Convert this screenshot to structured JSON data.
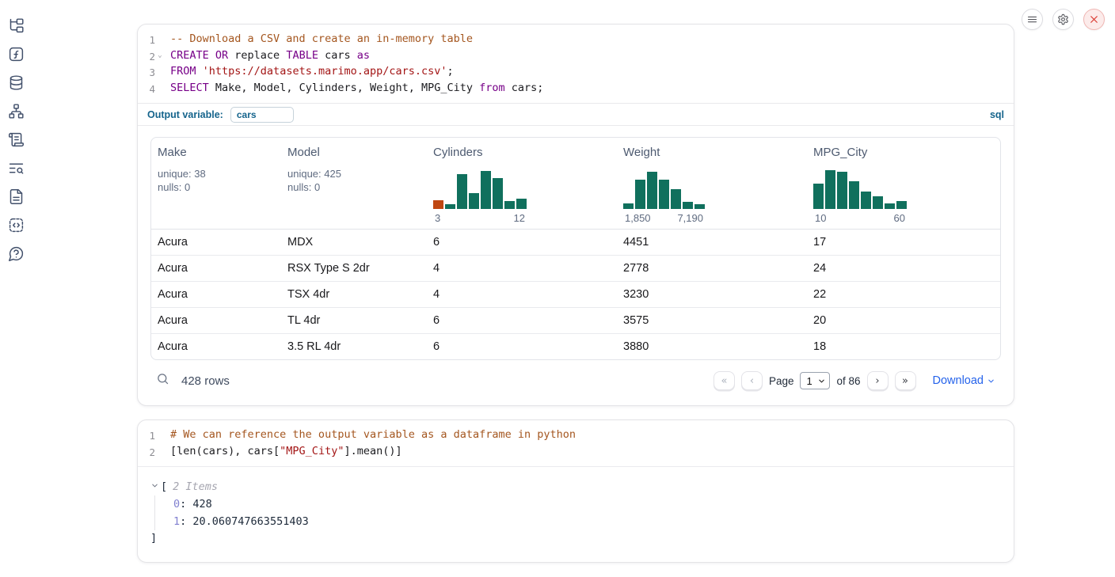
{
  "sidebar": {
    "icons": [
      "file-explorer",
      "functions",
      "datasources",
      "dependency-graph",
      "logs",
      "outline-search",
      "documentation",
      "snippets",
      "help"
    ]
  },
  "topbar": {
    "menu": "menu",
    "settings": "settings",
    "shutdown": "shutdown"
  },
  "colors": {
    "hist_bar": "#10705d",
    "hist_bar_highlight": "#bf4712",
    "accent_blue": "#15648c",
    "link_blue": "#2563eb"
  },
  "cells": [
    {
      "language_badge": "sql",
      "output_variable": {
        "label": "Output variable:",
        "value": "cars"
      },
      "code": [
        {
          "num": "1",
          "fold": false,
          "tokens": [
            {
              "text": "-- Download a CSV and create an in-memory table",
              "type": "comment"
            }
          ]
        },
        {
          "num": "2",
          "fold": true,
          "tokens": [
            {
              "text": "CREATE OR",
              "type": "keyword"
            },
            {
              "text": " replace ",
              "type": "plain"
            },
            {
              "text": "TABLE",
              "type": "keyword"
            },
            {
              "text": " cars ",
              "type": "plain"
            },
            {
              "text": "as",
              "type": "keyword"
            }
          ]
        },
        {
          "num": "3",
          "fold": false,
          "tokens": [
            {
              "text": "FROM",
              "type": "keyword"
            },
            {
              "text": " ",
              "type": "plain"
            },
            {
              "text": "'https://datasets.marimo.app/cars.csv'",
              "type": "string"
            },
            {
              "text": ";",
              "type": "plain"
            }
          ]
        },
        {
          "num": "4",
          "fold": false,
          "tokens": [
            {
              "text": "SELECT",
              "type": "keyword"
            },
            {
              "text": " Make, Model, Cylinders, Weight, MPG_City ",
              "type": "plain"
            },
            {
              "text": "from",
              "type": "keyword"
            },
            {
              "text": " cars;",
              "type": "plain"
            }
          ]
        }
      ],
      "table": {
        "columns": [
          {
            "name": "Make",
            "stats": [
              "unique: 38",
              "nulls: 0"
            ]
          },
          {
            "name": "Model",
            "stats": [
              "unique: 425",
              "nulls: 0"
            ]
          },
          {
            "name": "Cylinders",
            "hist": {
              "min_label": "3",
              "max_label": "12",
              "heights": [
                22,
                12,
                85,
                38,
                93,
                75,
                20,
                25
              ],
              "highlight_first": true
            }
          },
          {
            "name": "Weight",
            "hist": {
              "min_label": "1,850",
              "max_label": "7,190",
              "heights": [
                13,
                72,
                90,
                72,
                48,
                18,
                12
              ],
              "highlight_first": false
            }
          },
          {
            "name": "MPG_City",
            "hist": {
              "min_label": "10",
              "max_label": "60",
              "heights": [
                62,
                95,
                90,
                68,
                42,
                30,
                13,
                20
              ],
              "highlight_first": false
            }
          }
        ],
        "rows": [
          [
            "Acura",
            "MDX",
            "6",
            "4451",
            "17"
          ],
          [
            "Acura",
            "RSX Type S 2dr",
            "4",
            "2778",
            "24"
          ],
          [
            "Acura",
            "TSX 4dr",
            "4",
            "3230",
            "22"
          ],
          [
            "Acura",
            "TL 4dr",
            "6",
            "3575",
            "20"
          ],
          [
            "Acura",
            "3.5 RL 4dr",
            "6",
            "3880",
            "18"
          ]
        ],
        "footer": {
          "row_count": "428 rows",
          "first_button": "«",
          "prev_button": "‹",
          "page_label": "Page",
          "page_value": "1",
          "total_label": "of 86",
          "next_button": "›",
          "last_button": "»",
          "download_label": "Download"
        }
      }
    },
    {
      "code": [
        {
          "num": "1",
          "fold": false,
          "tokens": [
            {
              "text": "# We can reference the output variable as a dataframe in python",
              "type": "comment"
            }
          ]
        },
        {
          "num": "2",
          "fold": false,
          "tokens": [
            {
              "text": "[len(cars), cars[",
              "type": "plain"
            },
            {
              "text": "\"MPG_City\"",
              "type": "string"
            },
            {
              "text": "].mean()]",
              "type": "plain"
            }
          ]
        }
      ],
      "output_tree": {
        "open_bracket": "[",
        "items_label": "2 Items",
        "entries": [
          {
            "key": "0",
            "value": "428"
          },
          {
            "key": "1",
            "value": "20.060747663551403"
          }
        ],
        "close_bracket": "]"
      }
    }
  ],
  "chart_data": [
    {
      "type": "bar",
      "title": "Cylinders histogram",
      "xlabel": "Cylinders",
      "x_range": [
        3,
        12
      ],
      "values": [
        22,
        12,
        85,
        38,
        93,
        75,
        20,
        25
      ],
      "note": "relative bar heights in %, first bar highlighted orange",
      "tick_labels": [
        "3",
        "12"
      ]
    },
    {
      "type": "bar",
      "title": "Weight histogram",
      "xlabel": "Weight",
      "x_range": [
        1850,
        7190
      ],
      "values": [
        13,
        72,
        90,
        72,
        48,
        18,
        12
      ],
      "note": "relative bar heights in %",
      "tick_labels": [
        "1,850",
        "7,190"
      ]
    },
    {
      "type": "bar",
      "title": "MPG_City histogram",
      "xlabel": "MPG_City",
      "x_range": [
        10,
        60
      ],
      "values": [
        62,
        95,
        90,
        68,
        42,
        30,
        13,
        20
      ],
      "note": "relative bar heights in %",
      "tick_labels": [
        "10",
        "60"
      ]
    }
  ]
}
